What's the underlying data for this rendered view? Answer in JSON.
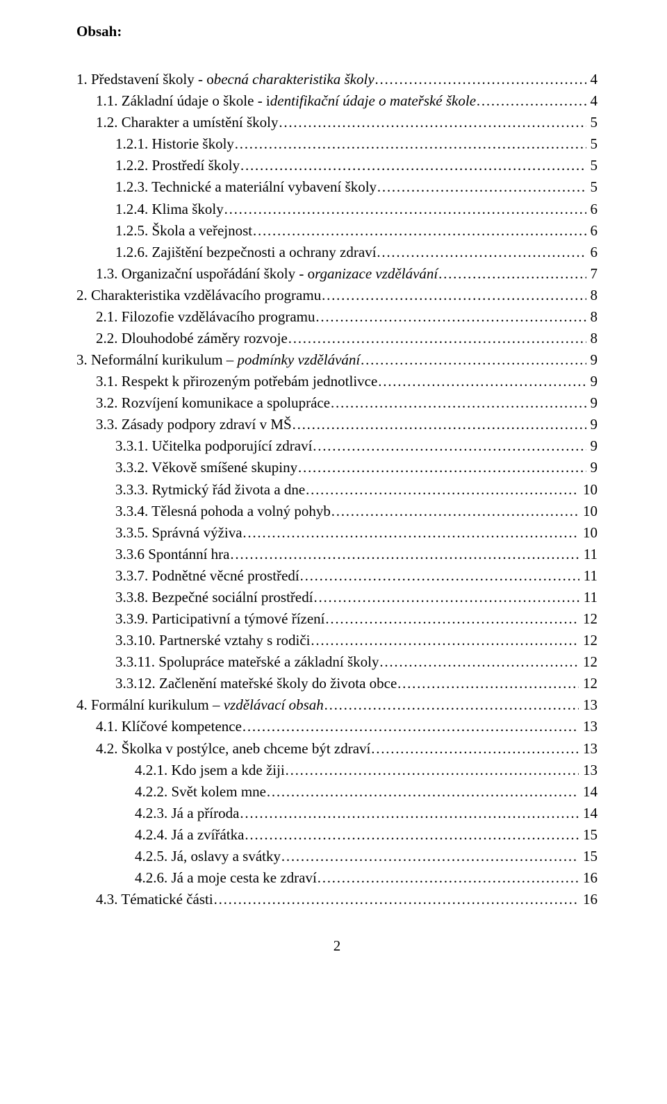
{
  "title": "Obsah:",
  "page_number": "2",
  "toc": [
    {
      "indent": 0,
      "num": "1.",
      "text_plain": "Představení školy  - o",
      "text_italic": "becná charakteristika školy",
      "page": "4"
    },
    {
      "indent": 1,
      "num": "1.1.",
      "text_plain": "Základní údaje o škole - i",
      "text_italic": "dentifikační údaje o mateřské škole",
      "page": "4"
    },
    {
      "indent": 1,
      "num": "1.2.",
      "text_plain": "Charakter a umístění školy",
      "text_italic": "",
      "page": "5"
    },
    {
      "indent": 2,
      "num": "1.2.1.",
      "text_plain": "Historie školy",
      "text_italic": "",
      "page": "5"
    },
    {
      "indent": 2,
      "num": "1.2.2.",
      "text_plain": "Prostředí školy",
      "text_italic": "",
      "page": "5"
    },
    {
      "indent": 2,
      "num": "1.2.3.",
      "text_plain": "Technické a materiální vybavení školy",
      "text_italic": "",
      "page": "5"
    },
    {
      "indent": 2,
      "num": "1.2.4.",
      "text_plain": "Klima školy",
      "text_italic": "",
      "page": "6"
    },
    {
      "indent": 2,
      "num": "1.2.5.",
      "text_plain": "Škola a veřejnost",
      "text_italic": "",
      "page": "6"
    },
    {
      "indent": 2,
      "num": "1.2.6.",
      "text_plain": "Zajištění bezpečnosti a ochrany zdraví",
      "text_italic": "",
      "page": "6"
    },
    {
      "indent": 1,
      "num": "1.3.",
      "text_plain": "Organizační uspořádání školy - o",
      "text_italic": "rganizace vzdělávání",
      "page": "7"
    },
    {
      "indent": 0,
      "num": "2.",
      "text_plain": "Charakteristika vzdělávacího programu",
      "text_italic": "",
      "page": "8"
    },
    {
      "indent": 1,
      "num": "2.1.",
      "text_plain": "Filozofie vzdělávacího programu",
      "text_italic": "",
      "page": "8"
    },
    {
      "indent": 1,
      "num": "2.2.",
      "text_plain": "Dlouhodobé záměry rozvoje",
      "text_italic": "",
      "page": "8"
    },
    {
      "indent": 0,
      "num": "3.",
      "text_plain": "Neformální kurikulum – ",
      "text_italic": "podmínky vzdělávání",
      "page": "9"
    },
    {
      "indent": 1,
      "num": "3.1.",
      "text_plain": "Respekt k přirozeným potřebám jednotlivce",
      "text_italic": "",
      "page": "9"
    },
    {
      "indent": 1,
      "num": "3.2.",
      "text_plain": "Rozvíjení komunikace a spolupráce",
      "text_italic": "",
      "page": "9"
    },
    {
      "indent": 1,
      "num": "3.3.",
      "text_plain": "Zásady podpory zdraví v MŠ",
      "text_italic": "",
      "page": "9"
    },
    {
      "indent": 2,
      "num": "3.3.1.",
      "text_plain": "Učitelka  podporující zdraví",
      "text_italic": "",
      "page": "9"
    },
    {
      "indent": 2,
      "num": "3.3.2.",
      "text_plain": "Věkově smíšené skupiny",
      "text_italic": "",
      "page": "9"
    },
    {
      "indent": 2,
      "num": "3.3.3.",
      "text_plain": "Rytmický řád života a dne",
      "text_italic": "",
      "page": "10"
    },
    {
      "indent": 2,
      "num": "3.3.4.",
      "text_plain": "Tělesná pohoda a volný pohyb",
      "text_italic": "",
      "page": "10"
    },
    {
      "indent": 2,
      "num": "3.3.5.",
      "text_plain": "Správná výživa",
      "text_italic": "",
      "page": "10"
    },
    {
      "indent": 2,
      "num": "3.3.6",
      "text_plain": "Spontánní hra",
      "text_italic": "",
      "page": "11"
    },
    {
      "indent": 2,
      "num": "3.3.7.",
      "text_plain": "Podnětné věcné prostředí",
      "text_italic": "",
      "page": "11"
    },
    {
      "indent": 2,
      "num": "3.3.8.",
      "text_plain": "Bezpečné sociální prostředí",
      "text_italic": "",
      "page": "11"
    },
    {
      "indent": 2,
      "num": "3.3.9.",
      "text_plain": "Participativní a týmové řízení",
      "text_italic": "",
      "page": "12"
    },
    {
      "indent": 2,
      "num": "3.3.10.",
      "text_plain": "Partnerské vztahy s rodiči",
      "text_italic": "",
      "page": "12"
    },
    {
      "indent": 2,
      "num": "3.3.11.",
      "text_plain": "Spolupráce mateřské a základní školy",
      "text_italic": "",
      "page": "12"
    },
    {
      "indent": 2,
      "num": "3.3.12.",
      "text_plain": "Začlenění mateřské školy do života obce",
      "text_italic": "",
      "page": "12"
    },
    {
      "indent": 0,
      "num": "4.",
      "text_plain": "Formální kurikulum – ",
      "text_italic": "vzdělávací obsah",
      "page": "13"
    },
    {
      "indent": 1,
      "num": "4.1.",
      "text_plain": "Klíčové kompetence",
      "text_italic": "",
      "page": "13"
    },
    {
      "indent": 1,
      "num": "4.2.",
      "text_plain": "Školka v postýlce, aneb chceme být zdraví",
      "text_italic": "",
      "page": "13"
    },
    {
      "indent": 3,
      "num": "4.2.1.",
      "text_plain": "Kdo jsem a kde žiji",
      "text_italic": "",
      "page": "13"
    },
    {
      "indent": 3,
      "num": "4.2.2.",
      "text_plain": "Svět kolem mne",
      "text_italic": "",
      "page": "14"
    },
    {
      "indent": 3,
      "num": "4.2.3.",
      "text_plain": "Já a příroda",
      "text_italic": "",
      "page": "14"
    },
    {
      "indent": 3,
      "num": "4.2.4.",
      "text_plain": "Já a zvířátka",
      "text_italic": "",
      "page": "15"
    },
    {
      "indent": 3,
      "num": "4.2.5.",
      "text_plain": "Já, oslavy a svátky",
      "text_italic": "",
      "page": "15"
    },
    {
      "indent": 3,
      "num": "4.2.6.",
      "text_plain": "Já a moje cesta ke zdraví",
      "text_italic": "",
      "page": "16"
    },
    {
      "indent": 1,
      "num": "4.3.",
      "text_plain": "Tématické části",
      "text_italic": "",
      "page": "16"
    }
  ]
}
